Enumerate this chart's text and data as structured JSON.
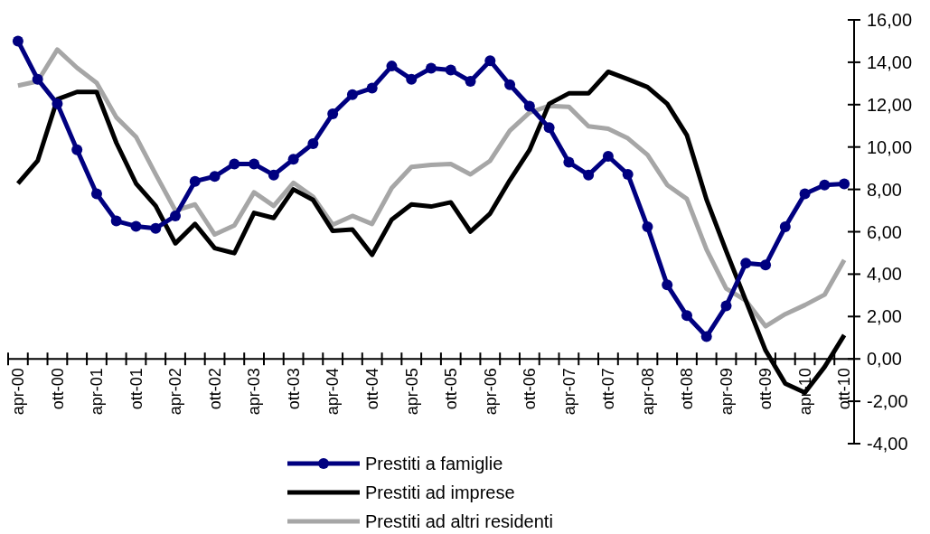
{
  "chart_data": {
    "type": "line",
    "categories": [
      "apr-00",
      null,
      "ott-00",
      null,
      "apr-01",
      null,
      "ott-01",
      null,
      "apr-02",
      null,
      "ott-02",
      null,
      "apr-03",
      null,
      "ott-03",
      null,
      "apr-04",
      null,
      "ott-04",
      null,
      "apr-05",
      null,
      "ott-05",
      null,
      "apr-06",
      null,
      "ott-06",
      null,
      "apr-07",
      null,
      "ott-07",
      null,
      "apr-08",
      null,
      "ott-08",
      null,
      "apr-09",
      null,
      "ott-09",
      null,
      "apr-10",
      null,
      "ott-10"
    ],
    "series": [
      {
        "name": "Prestiti a famiglie",
        "color": "#000080",
        "marker": "circle",
        "values": [
          15.0,
          13.2,
          12.04,
          9.87,
          7.79,
          6.51,
          6.26,
          6.16,
          6.75,
          8.38,
          8.61,
          9.2,
          9.2,
          8.68,
          9.42,
          10.16,
          11.57,
          12.47,
          12.78,
          13.82,
          13.2,
          13.72,
          13.63,
          13.1,
          14.07,
          12.94,
          11.93,
          10.91,
          9.28,
          8.68,
          9.56,
          8.71,
          6.23,
          3.49,
          2.04,
          1.05,
          2.5,
          4.52,
          4.43,
          6.23,
          7.79,
          8.21,
          8.26
        ]
      },
      {
        "name": "Prestiti ad imprese",
        "color": "#000000",
        "values": [
          8.28,
          9.35,
          12.25,
          12.6,
          12.6,
          10.2,
          8.28,
          7.22,
          5.45,
          6.37,
          5.23,
          4.99,
          6.89,
          6.65,
          8.0,
          7.5,
          6.04,
          6.11,
          4.91,
          6.58,
          7.29,
          7.19,
          7.39,
          6.01,
          6.86,
          8.43,
          9.85,
          12.04,
          12.53,
          12.53,
          13.55,
          13.2,
          12.83,
          12.04,
          10.56,
          7.52,
          5.09,
          2.74,
          0.4,
          -1.16,
          -1.59,
          -0.38,
          1.12
        ]
      },
      {
        "name": "Prestiti ad altri residenti",
        "color": "#a6a6a6",
        "values": [
          12.9,
          13.1,
          14.6,
          13.74,
          13.03,
          11.4,
          10.48,
          8.71,
          7.0,
          7.29,
          5.87,
          6.3,
          7.86,
          7.22,
          8.31,
          7.65,
          6.33,
          6.75,
          6.37,
          8.07,
          9.06,
          9.16,
          9.2,
          8.71,
          9.35,
          10.77,
          11.62,
          11.94,
          11.9,
          10.98,
          10.86,
          10.41,
          9.63,
          8.21,
          7.55,
          5.16,
          3.32,
          2.75,
          1.54,
          2.11,
          2.54,
          3.03,
          4.67
        ]
      }
    ],
    "ylim": [
      -4,
      16
    ],
    "yticks": [
      {
        "value": -4,
        "label": "-4,00"
      },
      {
        "value": -2,
        "label": "-2,00"
      },
      {
        "value": 0,
        "label": "0,00"
      },
      {
        "value": 2,
        "label": "2,00"
      },
      {
        "value": 4,
        "label": "4,00"
      },
      {
        "value": 6,
        "label": "6,00"
      },
      {
        "value": 8,
        "label": "8,00"
      },
      {
        "value": 10,
        "label": "10,00"
      },
      {
        "value": 12,
        "label": "12,00"
      },
      {
        "value": 14,
        "label": "14,00"
      },
      {
        "value": 16,
        "label": "16,00"
      }
    ],
    "grid": false,
    "legend": "bottom"
  }
}
